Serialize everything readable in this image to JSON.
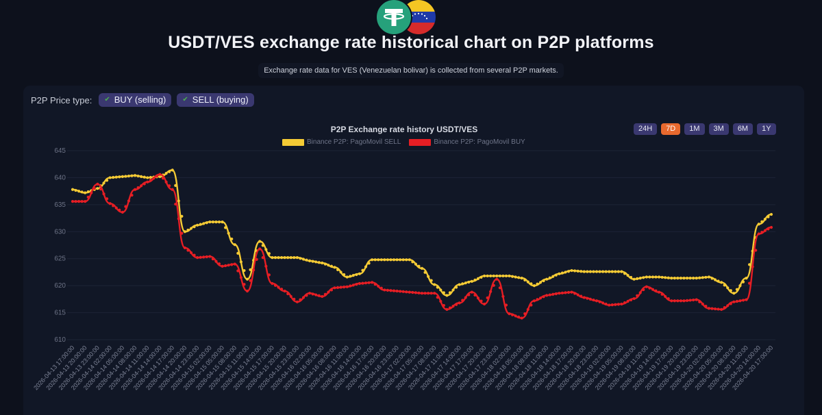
{
  "header": {
    "title": "USDT/VES exchange rate historical chart on P2P platforms",
    "subtitle": "Exchange rate data for VES (Venezuelan bolivar) is collected from several P2P markets."
  },
  "filters": {
    "label": "P2P Price type:",
    "chips": [
      {
        "label": "BUY (selling)",
        "checked": true
      },
      {
        "label": "SELL (buying)",
        "checked": true
      }
    ]
  },
  "ranges": {
    "buttons": [
      "24H",
      "7D",
      "1M",
      "3M",
      "6M",
      "1Y"
    ],
    "active": "7D"
  },
  "chart_data": {
    "type": "line",
    "title": "P2P Exchange rate history USDT/VES",
    "ylim": [
      610,
      645
    ],
    "yticks": [
      610,
      615,
      620,
      625,
      630,
      635,
      640,
      645
    ],
    "grid": true,
    "legend_position": "top-center",
    "categories": [
      "2026-04-13 17:00:00",
      "2026-04-13 20:00:00",
      "2026-04-13 23:00:00",
      "2026-04-14 02:00:00",
      "2026-04-14 05:00:00",
      "2026-04-14 08:00:00",
      "2026-04-14 11:00:00",
      "2026-04-14 14:00:00",
      "2026-04-14 17:00:00",
      "2026-04-14 20:00:00",
      "2026-04-14 23:00:00",
      "2026-04-15 02:00:00",
      "2026-04-15 05:00:00",
      "2026-04-15 08:00:00",
      "2026-04-15 11:00:00",
      "2026-04-15 14:00:00",
      "2026-04-15 17:00:00",
      "2026-04-15 20:00:00",
      "2026-04-15 23:00:00",
      "2026-04-16 02:00:00",
      "2026-04-16 05:00:00",
      "2026-04-16 08:00:00",
      "2026-04-16 11:00:00",
      "2026-04-16 14:00:00",
      "2026-04-16 17:00:00",
      "2026-04-16 20:00:00",
      "2026-04-16 23:00:00",
      "2026-04-17 02:00:00",
      "2026-04-17 05:00:00",
      "2026-04-17 08:00:00",
      "2026-04-17 11:00:00",
      "2026-04-17 14:00:00",
      "2026-04-17 17:00:00",
      "2026-04-17 20:00:00",
      "2026-04-17 23:00:00",
      "2026-04-18 02:00:00",
      "2026-04-18 05:00:00",
      "2026-04-18 08:00:00",
      "2026-04-18 11:00:00",
      "2026-04-18 14:00:00",
      "2026-04-18 17:00:00",
      "2026-04-18 20:00:00",
      "2026-04-18 23:00:00",
      "2026-04-19 02:00:00",
      "2026-04-19 05:00:00",
      "2026-04-19 08:00:00",
      "2026-04-19 11:00:00",
      "2026-04-19 14:00:00",
      "2026-04-19 17:00:00",
      "2026-04-19 20:00:00",
      "2026-04-19 23:00:00",
      "2026-04-20 02:00:00",
      "2026-04-20 05:00:00",
      "2026-04-20 08:00:00",
      "2026-04-20 11:00:00",
      "2026-04-20 14:00:00",
      "2026-04-20 17:00:00"
    ],
    "series": [
      {
        "name": "Binance P2P: PagoMovil SELL",
        "color": "#f5cb35",
        "values": [
          637.8,
          637.2,
          638.0,
          640.0,
          640.2,
          640.4,
          640.0,
          640.2,
          641.4,
          630.0,
          631.2,
          631.8,
          631.8,
          627.6,
          621.2,
          628.2,
          625.2,
          625.2,
          625.2,
          624.6,
          624.2,
          623.4,
          621.6,
          622.2,
          624.8,
          624.8,
          624.8,
          624.8,
          623.2,
          620.2,
          618.2,
          620.2,
          620.8,
          621.8,
          621.8,
          621.8,
          621.4,
          620.0,
          621.2,
          622.2,
          622.8,
          622.6,
          622.6,
          622.6,
          622.6,
          621.2,
          621.6,
          621.6,
          621.4,
          621.4,
          621.4,
          621.6,
          620.6,
          618.6,
          621.4,
          631.4,
          633.2
        ]
      },
      {
        "name": "Binance P2P: PagoMovil BUY",
        "color": "#e61e24",
        "values": [
          635.6,
          635.6,
          638.8,
          635.2,
          633.6,
          637.8,
          639.2,
          640.6,
          637.8,
          627.0,
          625.2,
          625.4,
          623.6,
          624.0,
          619.0,
          626.8,
          620.4,
          619.0,
          617.0,
          618.6,
          618.0,
          619.6,
          619.8,
          620.4,
          620.6,
          619.2,
          619.0,
          618.8,
          618.6,
          618.6,
          615.6,
          616.8,
          618.8,
          616.6,
          621.2,
          614.8,
          614.0,
          617.2,
          618.2,
          618.6,
          618.8,
          617.8,
          617.2,
          616.4,
          616.6,
          617.6,
          619.8,
          618.8,
          617.2,
          617.2,
          617.4,
          615.8,
          615.6,
          617.0,
          617.4,
          629.6,
          630.8
        ]
      }
    ]
  }
}
